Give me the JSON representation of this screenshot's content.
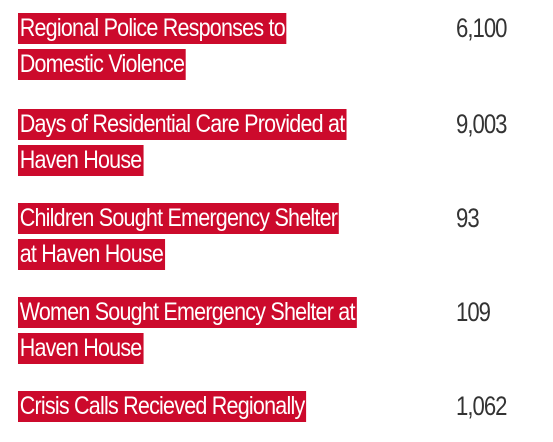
{
  "colors": {
    "label_background": "#cc0a2c",
    "label_text": "#ffffff",
    "value_text": "#333333"
  },
  "stats": [
    {
      "label": "Regional Police Responses to Domestic Violence",
      "value": "6,100"
    },
    {
      "label": "Days of Residential Care Provided at Haven House",
      "value": "9,003"
    },
    {
      "label": "Children Sought Emergency Shelter at Haven House",
      "value": "93"
    },
    {
      "label": "Women Sought Emergency Shelter at Haven House",
      "value": "109"
    },
    {
      "label": "Crisis Calls Recieved Regionally",
      "value": "1,062"
    }
  ]
}
